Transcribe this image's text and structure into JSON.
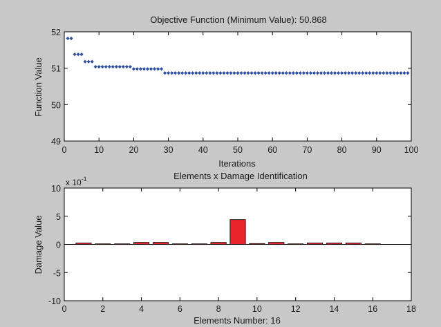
{
  "figure_background": "#c8c8c8",
  "chart_data": [
    {
      "type": "scatter",
      "title": "Objective Function (Minimum Value):  50.868",
      "xlabel": "Iterations",
      "ylabel": "Function Value",
      "xlim": [
        0,
        100
      ],
      "ylim": [
        49,
        52
      ],
      "xticks": [
        "0",
        "10",
        "20",
        "30",
        "40",
        "50",
        "60",
        "70",
        "80",
        "90",
        "100"
      ],
      "yticks": [
        "49",
        "50",
        "51",
        "52"
      ],
      "marker": "diamond",
      "marker_color": "#2e4fa0",
      "grid": false,
      "series": [
        {
          "x": [
            1,
            2,
            3,
            4,
            5,
            6,
            7,
            8,
            9,
            10,
            11,
            12,
            13,
            14,
            15,
            16,
            17,
            18,
            19,
            20,
            21,
            22,
            23,
            24,
            25,
            26,
            27,
            28,
            29,
            30,
            31,
            32,
            33,
            34,
            35,
            36,
            37,
            38,
            39,
            40,
            41,
            42,
            43,
            44,
            45,
            46,
            47,
            48,
            49,
            50,
            51,
            52,
            53,
            54,
            55,
            56,
            57,
            58,
            59,
            60,
            61,
            62,
            63,
            64,
            65,
            66,
            67,
            68,
            69,
            70,
            71,
            72,
            73,
            74,
            75,
            76,
            77,
            78,
            79,
            80,
            81,
            82,
            83,
            84,
            85,
            86,
            87,
            88,
            89,
            90,
            91,
            92,
            93,
            94,
            95,
            96,
            97,
            98,
            99
          ],
          "y": [
            51.82,
            51.82,
            51.38,
            51.38,
            51.38,
            51.18,
            51.18,
            51.18,
            51.04,
            51.04,
            51.04,
            51.04,
            51.04,
            51.04,
            51.04,
            51.04,
            51.04,
            51.04,
            51.04,
            50.98,
            50.98,
            50.98,
            50.98,
            50.98,
            50.98,
            50.98,
            50.98,
            50.98,
            50.868,
            50.868,
            50.868,
            50.868,
            50.868,
            50.868,
            50.868,
            50.868,
            50.868,
            50.868,
            50.868,
            50.868,
            50.868,
            50.868,
            50.868,
            50.868,
            50.868,
            50.868,
            50.868,
            50.868,
            50.868,
            50.868,
            50.868,
            50.868,
            50.868,
            50.868,
            50.868,
            50.868,
            50.868,
            50.868,
            50.868,
            50.868,
            50.868,
            50.868,
            50.868,
            50.868,
            50.868,
            50.868,
            50.868,
            50.868,
            50.868,
            50.868,
            50.868,
            50.868,
            50.868,
            50.868,
            50.868,
            50.868,
            50.868,
            50.868,
            50.868,
            50.868,
            50.868,
            50.868,
            50.868,
            50.868,
            50.868,
            50.868,
            50.868,
            50.868,
            50.868,
            50.868,
            50.868,
            50.868,
            50.868,
            50.868,
            50.868,
            50.868,
            50.868,
            50.868,
            50.868
          ]
        }
      ]
    },
    {
      "type": "bar",
      "title": "Elements x Damage Identification",
      "xlabel": "Elements Number: 16",
      "ylabel": "Damage Value",
      "xlim": [
        0,
        18
      ],
      "ylim": [
        -10,
        10
      ],
      "y_exponent": "x 10",
      "y_exponent_power": "-1",
      "xticks": [
        "0",
        "2",
        "4",
        "6",
        "8",
        "10",
        "12",
        "14",
        "16",
        "18"
      ],
      "yticks": [
        "-10",
        "-5",
        "0",
        "5",
        "10"
      ],
      "bar_color": "#e8242a",
      "grid": false,
      "categories": [
        1,
        2,
        3,
        4,
        5,
        6,
        7,
        8,
        9,
        10,
        11,
        12,
        13,
        14,
        15,
        16
      ],
      "values": [
        0.25,
        0.1,
        0.1,
        0.35,
        0.35,
        0.1,
        0.1,
        0.35,
        4.4,
        0.15,
        0.35,
        0.1,
        0.25,
        0.25,
        0.25,
        0.1
      ]
    }
  ]
}
